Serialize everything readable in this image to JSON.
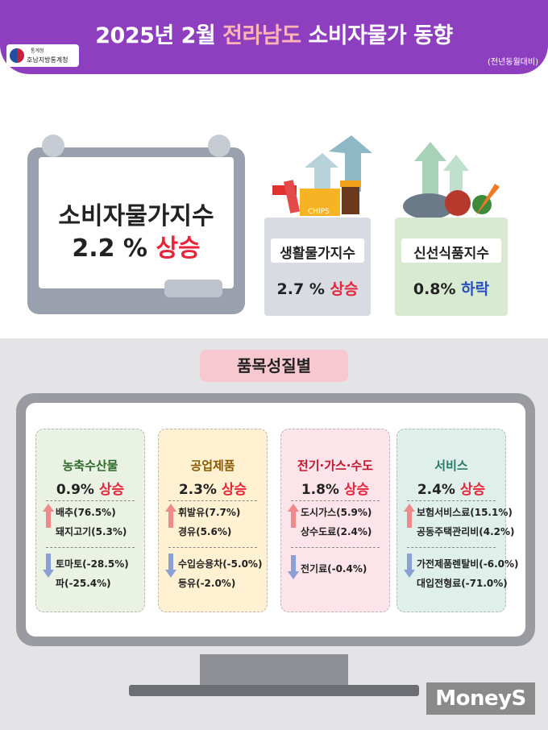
{
  "header": {
    "title_prefix": "2025년 2월",
    "title_highlight": "전라남도",
    "title_suffix": "소비자물가 동향",
    "org_small": "통계청",
    "org_name": "호남지방통계청",
    "note": "(전년동월대비)"
  },
  "summary": {
    "cpi_label": "소비자물가지수",
    "cpi_value": "2.2 %",
    "cpi_direction": "상승",
    "living": {
      "label": "생활물가지수",
      "value": "2.7 %",
      "direction": "상승"
    },
    "fresh": {
      "label": "신선식품지수",
      "value": "0.8%",
      "direction": "하락"
    },
    "goods_text": "CHIPS"
  },
  "by_category_title": "품목성질별",
  "categories": [
    {
      "name": "농축수산물",
      "rate": "0.9%",
      "direction": "상승",
      "name_color": "#2f6a2a",
      "up": [
        "배추(76.5%)",
        "돼지고기(5.3%)"
      ],
      "down": [
        "토마토(-28.5%)",
        "파(-25.4%)"
      ]
    },
    {
      "name": "공업제품",
      "rate": "2.3%",
      "direction": "상승",
      "name_color": "#8a5a00",
      "up": [
        "휘발유(7.7%)",
        "경유(5.6%)"
      ],
      "down": [
        "수입승용차(-5.0%)",
        "등유(-2.0%)"
      ]
    },
    {
      "name": "전기·가스·수도",
      "rate": "1.8%",
      "direction": "상승",
      "name_color": "#c0192e",
      "up": [
        "도시가스(5.9%)",
        "상수도료(2.4%)"
      ],
      "down": [
        "전기료(-0.4%)"
      ]
    },
    {
      "name": "서비스",
      "rate": "2.4%",
      "direction": "상승",
      "name_color": "#2a7a6a",
      "up": [
        "보험서비스료(15.1%)",
        "공동주택관리비(4.2%)"
      ],
      "down": [
        "가전제품렌탈비(-6.0%)",
        "대입전형료(-71.0%)"
      ]
    }
  ],
  "watermark": "MoneyS",
  "colors": {
    "header": "#8e3fc0",
    "up": "#e8243a",
    "down": "#2a4fbf"
  }
}
